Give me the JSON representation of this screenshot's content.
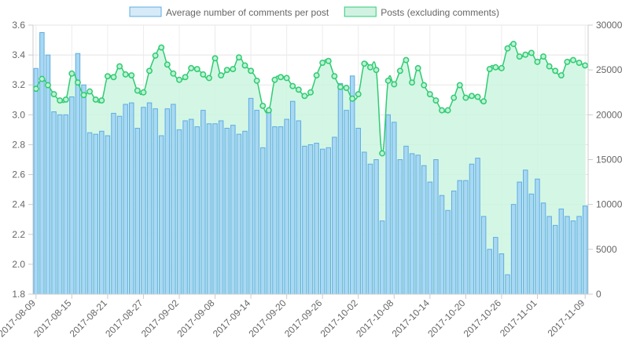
{
  "chart_data": {
    "type": "bar+line",
    "legend": {
      "placement": "top-center",
      "items": [
        {
          "label": "Average number of comments per post",
          "fill": "#d6eaf8",
          "stroke": "#5dade2"
        },
        {
          "label": "Posts (excluding comments)",
          "fill": "#d1f2e2",
          "stroke": "#2ecc71"
        }
      ]
    },
    "x_tick_labels": [
      "2017-08-09",
      "2017-08-15",
      "2017-08-21",
      "2017-08-27",
      "2017-09-02",
      "2017-09-08",
      "2017-09-14",
      "2017-09-20",
      "2017-09-26",
      "2017-10-02",
      "2017-10-08",
      "2017-10-14",
      "2017-10-20",
      "2017-10-26",
      "2017-11-01",
      "2017-11-09"
    ],
    "x_tick_indices": [
      0,
      6,
      12,
      18,
      24,
      30,
      36,
      42,
      48,
      54,
      60,
      66,
      72,
      78,
      84,
      92
    ],
    "y_left": {
      "min": 1.8,
      "max": 3.6,
      "ticks": [
        "1.8",
        "2.0",
        "2.2",
        "2.4",
        "2.6",
        "2.8",
        "3.0",
        "3.2",
        "3.4",
        "3.6"
      ]
    },
    "y_right": {
      "min": 0,
      "max": 30000,
      "ticks": [
        "0",
        "5000",
        "10000",
        "15000",
        "20000",
        "25000",
        "30000"
      ]
    },
    "grid": true,
    "series": [
      {
        "name": "Average number of comments per post",
        "type": "bar",
        "axis": "left",
        "color": "#5dade2",
        "fill": "#a9d8f2",
        "values": [
          3.31,
          3.55,
          3.4,
          3.02,
          3.0,
          3.0,
          3.12,
          3.41,
          3.2,
          2.88,
          2.87,
          2.89,
          2.86,
          3.01,
          2.99,
          3.07,
          3.08,
          2.91,
          3.05,
          3.08,
          3.04,
          2.86,
          3.04,
          3.07,
          2.9,
          2.96,
          2.97,
          2.92,
          3.03,
          2.94,
          2.94,
          2.96,
          2.91,
          2.93,
          2.87,
          2.89,
          3.11,
          3.03,
          2.78,
          3.03,
          2.92,
          2.92,
          2.97,
          3.09,
          2.96,
          2.79,
          2.8,
          2.81,
          2.77,
          2.78,
          2.85,
          3.21,
          3.03,
          3.26,
          2.91,
          2.75,
          2.67,
          2.7,
          2.29,
          3.0,
          2.95,
          2.7,
          2.79,
          2.74,
          2.73,
          2.66,
          2.55,
          2.7,
          2.46,
          2.36,
          2.49,
          2.56,
          2.56,
          2.67,
          2.71,
          2.32,
          2.1,
          2.18,
          2.07,
          1.93,
          2.4,
          2.55,
          2.63,
          2.47,
          2.57,
          2.41,
          2.32,
          2.26,
          2.37,
          2.32,
          2.29,
          2.32,
          2.39
        ]
      },
      {
        "name": "Posts (excluding comments)",
        "type": "line",
        "axis": "right",
        "color": "#2ecc71",
        "fill": "#ccf4e1",
        "values": [
          22900,
          24000,
          23300,
          22300,
          21600,
          21700,
          24600,
          23600,
          22200,
          22600,
          21700,
          21600,
          24300,
          24200,
          25400,
          24500,
          24400,
          22700,
          22500,
          24900,
          26600,
          27500,
          25600,
          24600,
          23900,
          24200,
          25200,
          25100,
          24500,
          24100,
          26300,
          24400,
          25000,
          25100,
          26400,
          25500,
          24900,
          23800,
          21000,
          20500,
          23900,
          24200,
          24100,
          23200,
          22800,
          22100,
          22500,
          24400,
          25800,
          26000,
          24300,
          23100,
          23000,
          21800,
          22300,
          25700,
          25300,
          25000,
          15700,
          23800,
          23400,
          24900,
          26100,
          23600,
          25200,
          23300,
          22300,
          21600,
          20500,
          20500,
          21900,
          23300,
          21900,
          22100,
          22000,
          21500,
          25100,
          25300,
          25200,
          27400,
          27900,
          26500,
          26700,
          26900,
          25900,
          26500,
          25400,
          24900,
          24400,
          25900,
          26100,
          25800,
          25500
        ]
      }
    ]
  }
}
